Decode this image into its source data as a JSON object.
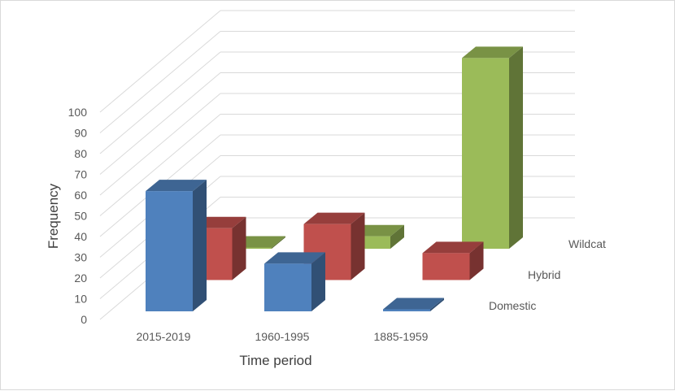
{
  "chart_data": {
    "type": "bar",
    "subtype": "3d-column",
    "title": "",
    "xlabel": "Time period",
    "ylabel": "Frequency",
    "ylim": [
      0,
      100
    ],
    "yticks": [
      "0",
      "10",
      "20",
      "30",
      "40",
      "50",
      "60",
      "70",
      "80",
      "90",
      "100"
    ],
    "categories": [
      "2015-2019",
      "1960-1995",
      "1885-1959"
    ],
    "series": [
      {
        "name": "Domestic",
        "values": [
          58,
          23,
          1
        ],
        "color": "#4f81bd"
      },
      {
        "name": "Hybrid",
        "values": [
          25,
          27,
          13
        ],
        "color": "#c0504d"
      },
      {
        "name": "Wildcat",
        "values": [
          0,
          6,
          92
        ],
        "color": "#9bbb59"
      }
    ],
    "grid": true,
    "legend": "none"
  }
}
